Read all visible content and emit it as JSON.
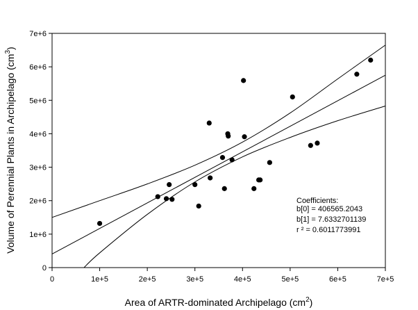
{
  "chart_data": {
    "type": "scatter",
    "xlabel": "Area of ARTR-dominated Archipelago (cm",
    "xlabel_sup": "2",
    "xlabel_end": ")",
    "ylabel": "Volume of Perennial Plants in Archipelago (cm",
    "ylabel_sup": "3",
    "ylabel_end": ")",
    "xlim": [
      0,
      700000
    ],
    "ylim": [
      0,
      7000000
    ],
    "x_ticks": [
      0,
      100000,
      200000,
      300000,
      400000,
      500000,
      600000,
      700000
    ],
    "x_tick_labels": [
      "0",
      "1e+5",
      "2e+5",
      "3e+5",
      "4e+5",
      "5e+5",
      "6e+5",
      "7e+5"
    ],
    "y_ticks": [
      0,
      1000000,
      2000000,
      3000000,
      4000000,
      5000000,
      6000000,
      7000000
    ],
    "y_tick_labels": [
      "0",
      "1e+6",
      "2e+6",
      "3e+6",
      "4e+6",
      "5e+6",
      "6e+6",
      "7e+6"
    ],
    "grid": false,
    "points": [
      {
        "x": 100000,
        "y": 1320000
      },
      {
        "x": 222000,
        "y": 2120000
      },
      {
        "x": 240000,
        "y": 2060000
      },
      {
        "x": 246000,
        "y": 2480000
      },
      {
        "x": 252000,
        "y": 2040000
      },
      {
        "x": 300000,
        "y": 2480000
      },
      {
        "x": 308000,
        "y": 1840000
      },
      {
        "x": 330000,
        "y": 4320000
      },
      {
        "x": 332000,
        "y": 2680000
      },
      {
        "x": 358000,
        "y": 3290000
      },
      {
        "x": 362000,
        "y": 2360000
      },
      {
        "x": 369000,
        "y": 4000000
      },
      {
        "x": 370000,
        "y": 3930000
      },
      {
        "x": 378000,
        "y": 3220000
      },
      {
        "x": 402000,
        "y": 5590000
      },
      {
        "x": 404000,
        "y": 3910000
      },
      {
        "x": 424000,
        "y": 2360000
      },
      {
        "x": 434000,
        "y": 2620000
      },
      {
        "x": 437000,
        "y": 2620000
      },
      {
        "x": 457000,
        "y": 3140000
      },
      {
        "x": 505000,
        "y": 5100000
      },
      {
        "x": 543000,
        "y": 3650000
      },
      {
        "x": 557000,
        "y": 3720000
      },
      {
        "x": 640000,
        "y": 5780000
      },
      {
        "x": 669000,
        "y": 6200000
      }
    ],
    "regression": {
      "b0": 406565.2043,
      "b1": 7.6332701139
    },
    "confidence_band": {
      "upper": [
        [
          0,
          1500000
        ],
        [
          100000,
          2000000
        ],
        [
          200000,
          2500000
        ],
        [
          300000,
          3060000
        ],
        [
          400000,
          3750000
        ],
        [
          500000,
          4620000
        ],
        [
          600000,
          5640000
        ],
        [
          700000,
          6650000
        ]
      ],
      "lower": [
        [
          67000,
          0
        ],
        [
          100000,
          440000
        ],
        [
          200000,
          1590000
        ],
        [
          300000,
          2560000
        ],
        [
          400000,
          3310000
        ],
        [
          500000,
          3890000
        ],
        [
          600000,
          4390000
        ],
        [
          700000,
          4830000
        ]
      ]
    },
    "annotation": {
      "title": "Coefficients:",
      "line1": "b[0] = 406565.2043",
      "line2": "b[1] = 7.6332701139",
      "line3": "r ² = 0.6011773991"
    },
    "colors": {
      "points": "#000000",
      "lines": "#000000",
      "axes": "#000000",
      "background": "#ffffff"
    }
  }
}
